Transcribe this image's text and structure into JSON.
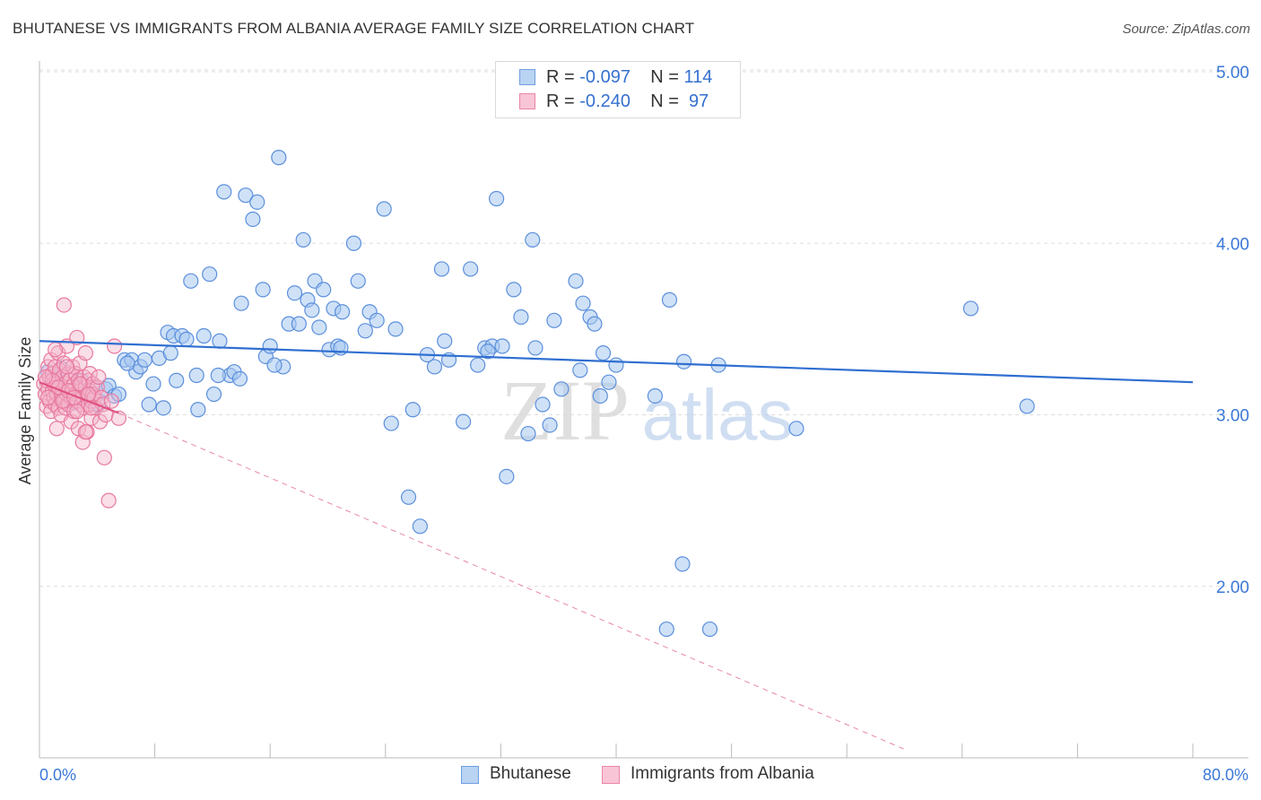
{
  "title": "BHUTANESE VS IMMIGRANTS FROM ALBANIA AVERAGE FAMILY SIZE CORRELATION CHART",
  "source": "Source: ZipAtlas.com",
  "watermark": {
    "zip": "ZIP",
    "atlas": "atlas"
  },
  "colors": {
    "blue": "#3a78d8",
    "blue_fill": "#a8c8f0",
    "pink": "#e8608f",
    "pink_fill": "#f5b6cb",
    "grid": "#dddddd",
    "axis_label": "#3a78d8"
  },
  "legend": {
    "rows": [
      {
        "r_label": "R = ",
        "r_value": "-0.097",
        "n_label": "N = ",
        "n_value": "114"
      },
      {
        "r_label": "R = ",
        "r_value": "-0.240",
        "n_label": "N = ",
        "n_value": " 97"
      }
    ]
  },
  "bottom_legend": [
    "Bhutanese",
    "Immigrants from Albania"
  ],
  "chart_data": {
    "type": "scatter",
    "title": "BHUTANESE VS IMMIGRANTS FROM ALBANIA AVERAGE FAMILY SIZE CORRELATION CHART",
    "xlabel": "",
    "ylabel": "Average Family Size",
    "xlim": [
      0,
      80
    ],
    "ylim": [
      1.0,
      5.2
    ],
    "x_tick_labels": [
      "0.0%",
      "80.0%"
    ],
    "y_ticks": [
      2.0,
      3.0,
      4.0,
      5.0
    ],
    "y_tick_labels": [
      "2.00",
      "3.00",
      "4.00",
      "5.00"
    ],
    "grid": true,
    "series": [
      {
        "name": "Bhutanese",
        "color": "#3a78d8",
        "r": -0.097,
        "n": 114,
        "trend": {
          "x": [
            0,
            80
          ],
          "y": [
            3.43,
            3.19
          ],
          "style": "solid"
        },
        "points": [
          [
            0.6,
            3.25
          ],
          [
            1.0,
            3.22
          ],
          [
            1.5,
            3.27
          ],
          [
            2.0,
            3.12
          ],
          [
            2.4,
            3.07
          ],
          [
            3.0,
            3.14
          ],
          [
            3.4,
            3.1
          ],
          [
            3.7,
            3.16
          ],
          [
            4.1,
            3.06
          ],
          [
            4.6,
            3.15
          ],
          [
            4.8,
            3.17
          ],
          [
            5.2,
            3.11
          ],
          [
            5.5,
            3.12
          ],
          [
            5.9,
            3.32
          ],
          [
            6.4,
            3.32
          ],
          [
            6.7,
            3.25
          ],
          [
            7.0,
            3.28
          ],
          [
            7.3,
            3.32
          ],
          [
            7.6,
            3.06
          ],
          [
            7.9,
            3.18
          ],
          [
            8.3,
            3.33
          ],
          [
            8.6,
            3.04
          ],
          [
            8.9,
            3.48
          ],
          [
            9.3,
            3.46
          ],
          [
            9.5,
            3.2
          ],
          [
            9.9,
            3.46
          ],
          [
            10.2,
            3.44
          ],
          [
            10.5,
            3.78
          ],
          [
            10.9,
            3.23
          ],
          [
            11.0,
            3.03
          ],
          [
            11.4,
            3.46
          ],
          [
            11.8,
            3.82
          ],
          [
            12.1,
            3.12
          ],
          [
            12.5,
            3.43
          ],
          [
            12.8,
            4.3
          ],
          [
            13.2,
            3.23
          ],
          [
            13.5,
            3.25
          ],
          [
            13.9,
            3.21
          ],
          [
            14.0,
            3.65
          ],
          [
            14.3,
            4.28
          ],
          [
            14.8,
            4.14
          ],
          [
            15.1,
            4.24
          ],
          [
            15.5,
            3.73
          ],
          [
            15.7,
            3.34
          ],
          [
            16.0,
            3.4
          ],
          [
            16.6,
            4.5
          ],
          [
            16.9,
            3.28
          ],
          [
            17.3,
            3.53
          ],
          [
            17.7,
            3.71
          ],
          [
            18.0,
            3.53
          ],
          [
            18.3,
            4.02
          ],
          [
            18.6,
            3.67
          ],
          [
            18.9,
            3.61
          ],
          [
            19.1,
            3.78
          ],
          [
            19.4,
            3.51
          ],
          [
            19.7,
            3.73
          ],
          [
            20.1,
            3.38
          ],
          [
            20.4,
            3.62
          ],
          [
            20.7,
            3.4
          ],
          [
            21.0,
            3.6
          ],
          [
            21.8,
            4.0
          ],
          [
            22.1,
            3.78
          ],
          [
            22.6,
            3.49
          ],
          [
            22.9,
            3.6
          ],
          [
            23.4,
            3.55
          ],
          [
            23.9,
            4.2
          ],
          [
            24.4,
            2.95
          ],
          [
            24.7,
            3.5
          ],
          [
            25.6,
            2.52
          ],
          [
            25.9,
            3.03
          ],
          [
            26.4,
            2.35
          ],
          [
            27.4,
            3.28
          ],
          [
            27.9,
            3.85
          ],
          [
            28.1,
            3.43
          ],
          [
            28.4,
            3.32
          ],
          [
            29.4,
            2.96
          ],
          [
            29.9,
            3.85
          ],
          [
            30.4,
            3.29
          ],
          [
            30.9,
            3.39
          ],
          [
            31.4,
            3.4
          ],
          [
            31.7,
            4.26
          ],
          [
            32.1,
            3.4
          ],
          [
            32.4,
            2.64
          ],
          [
            32.9,
            3.73
          ],
          [
            33.4,
            3.57
          ],
          [
            33.9,
            2.89
          ],
          [
            34.2,
            4.02
          ],
          [
            34.4,
            3.39
          ],
          [
            34.9,
            3.06
          ],
          [
            35.4,
            2.94
          ],
          [
            35.7,
            3.55
          ],
          [
            36.2,
            3.15
          ],
          [
            37.2,
            3.78
          ],
          [
            37.5,
            3.26
          ],
          [
            37.7,
            3.65
          ],
          [
            38.2,
            3.57
          ],
          [
            38.5,
            3.53
          ],
          [
            38.9,
            3.11
          ],
          [
            39.1,
            3.36
          ],
          [
            39.5,
            3.19
          ],
          [
            40.0,
            3.29
          ],
          [
            42.7,
            3.11
          ],
          [
            43.7,
            3.67
          ],
          [
            44.7,
            3.31
          ],
          [
            44.6,
            2.13
          ],
          [
            43.5,
            1.75
          ],
          [
            46.5,
            1.75
          ],
          [
            47.1,
            3.29
          ],
          [
            52.5,
            2.92
          ],
          [
            64.6,
            3.62
          ],
          [
            68.5,
            3.05
          ],
          [
            2.9,
            3.2
          ],
          [
            6.1,
            3.3
          ],
          [
            9.1,
            3.36
          ],
          [
            12.4,
            3.23
          ],
          [
            16.3,
            3.29
          ],
          [
            20.9,
            3.39
          ],
          [
            26.9,
            3.35
          ],
          [
            31.1,
            3.37
          ]
        ]
      },
      {
        "name": "Immigrants from Albania",
        "color": "#e8608f",
        "r": -0.24,
        "n": 97,
        "trend": {
          "x": [
            0,
            5.5
          ],
          "y": [
            3.19,
            3.01
          ],
          "style": "solid"
        },
        "trend_extension": {
          "x": [
            5.5,
            60
          ],
          "y": [
            3.01,
            1.05
          ],
          "style": "dashed"
        },
        "points": [
          [
            0.3,
            3.18
          ],
          [
            0.4,
            3.12
          ],
          [
            0.5,
            3.05
          ],
          [
            0.5,
            3.2
          ],
          [
            0.6,
            3.28
          ],
          [
            0.6,
            3.15
          ],
          [
            0.7,
            3.08
          ],
          [
            0.7,
            3.22
          ],
          [
            0.8,
            3.02
          ],
          [
            0.8,
            3.32
          ],
          [
            0.9,
            3.14
          ],
          [
            0.9,
            3.24
          ],
          [
            1.0,
            3.1
          ],
          [
            1.0,
            3.18
          ],
          [
            1.1,
            3.06
          ],
          [
            1.1,
            3.28
          ],
          [
            1.2,
            3.12
          ],
          [
            1.2,
            3.2
          ],
          [
            1.3,
            3.04
          ],
          [
            1.3,
            3.36
          ],
          [
            1.4,
            3.16
          ],
          [
            1.4,
            3.26
          ],
          [
            1.5,
            3.1
          ],
          [
            1.5,
            3.0
          ],
          [
            1.6,
            3.22
          ],
          [
            1.6,
            3.14
          ],
          [
            1.7,
            3.08
          ],
          [
            1.7,
            3.3
          ],
          [
            1.8,
            3.18
          ],
          [
            1.8,
            3.04
          ],
          [
            1.9,
            3.12
          ],
          [
            1.9,
            3.4
          ],
          [
            2.0,
            3.24
          ],
          [
            2.0,
            3.06
          ],
          [
            2.1,
            3.16
          ],
          [
            2.1,
            3.2
          ],
          [
            2.2,
            3.1
          ],
          [
            2.2,
            2.96
          ],
          [
            2.3,
            3.28
          ],
          [
            2.3,
            3.14
          ],
          [
            2.4,
            3.02
          ],
          [
            2.4,
            3.18
          ],
          [
            2.5,
            3.12
          ],
          [
            2.5,
            3.24
          ],
          [
            2.6,
            3.08
          ],
          [
            2.6,
            3.45
          ],
          [
            2.7,
            3.2
          ],
          [
            2.7,
            2.92
          ],
          [
            2.8,
            3.14
          ],
          [
            2.8,
            3.3
          ],
          [
            2.9,
            3.06
          ],
          [
            2.9,
            3.18
          ],
          [
            3.0,
            3.1
          ],
          [
            3.0,
            2.84
          ],
          [
            3.1,
            3.22
          ],
          [
            3.1,
            3.04
          ],
          [
            3.2,
            3.16
          ],
          [
            3.2,
            3.36
          ],
          [
            3.3,
            3.12
          ],
          [
            3.3,
            2.9
          ],
          [
            3.4,
            3.2
          ],
          [
            3.4,
            3.06
          ],
          [
            3.5,
            3.14
          ],
          [
            3.5,
            3.24
          ],
          [
            3.6,
            3.08
          ],
          [
            3.6,
            2.98
          ],
          [
            3.7,
            3.18
          ],
          [
            3.7,
            3.12
          ],
          [
            3.8,
            3.1
          ],
          [
            3.9,
            3.04
          ],
          [
            4.0,
            3.16
          ],
          [
            4.1,
            3.22
          ],
          [
            4.2,
            2.96
          ],
          [
            4.3,
            3.1
          ],
          [
            4.4,
            3.06
          ],
          [
            4.5,
            2.75
          ],
          [
            4.6,
            3.0
          ],
          [
            4.8,
            2.5
          ],
          [
            5.0,
            3.08
          ],
          [
            5.2,
            3.4
          ],
          [
            5.5,
            2.98
          ],
          [
            1.7,
            3.64
          ],
          [
            1.2,
            2.92
          ],
          [
            0.6,
            3.1
          ],
          [
            0.9,
            3.2
          ],
          [
            1.3,
            3.16
          ],
          [
            1.6,
            3.08
          ],
          [
            2.0,
            3.14
          ],
          [
            2.4,
            3.1
          ],
          [
            2.8,
            3.18
          ],
          [
            3.2,
            2.9
          ],
          [
            3.6,
            3.04
          ],
          [
            0.4,
            3.22
          ],
          [
            1.1,
            3.38
          ],
          [
            1.9,
            3.28
          ],
          [
            2.6,
            3.02
          ],
          [
            3.4,
            3.12
          ]
        ]
      }
    ]
  }
}
